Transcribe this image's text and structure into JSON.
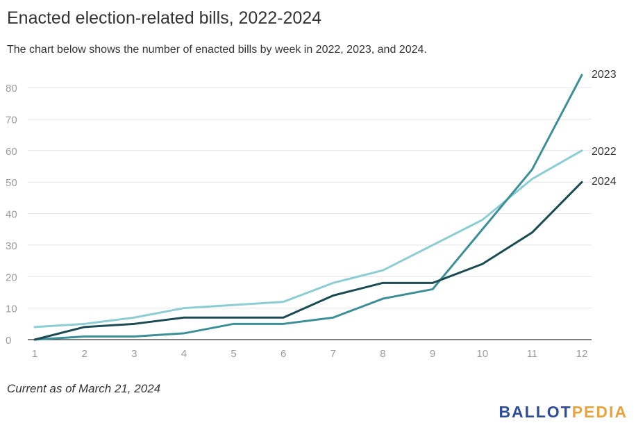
{
  "header": {
    "title": "Enacted election-related bills, 2022-2024",
    "subtitle": "The chart below shows the number of enacted bills by week in 2022, 2023, and 2024."
  },
  "footer": {
    "note": "Current as of March 21, 2024",
    "logo_part1": "BALLOT",
    "logo_part2": "PEDIA",
    "logo_colors": {
      "part1": "#2d4c9c",
      "part2": "#e8a33d"
    }
  },
  "chart_data": {
    "type": "line",
    "x": [
      1,
      2,
      3,
      4,
      5,
      6,
      7,
      8,
      9,
      10,
      11,
      12
    ],
    "ylim": [
      0,
      84
    ],
    "yticks": [
      0,
      10,
      20,
      30,
      40,
      50,
      60,
      70,
      80
    ],
    "grid": true,
    "legend": "inline-end-labels",
    "series": [
      {
        "name": "2022",
        "color": "#8ccdd3",
        "values": [
          4,
          5,
          7,
          10,
          11,
          12,
          18,
          22,
          30,
          38,
          51,
          60
        ]
      },
      {
        "name": "2023",
        "color": "#3c8f97",
        "values": [
          0,
          1,
          1,
          2,
          5,
          5,
          7,
          13,
          16,
          35,
          54,
          84
        ]
      },
      {
        "name": "2024",
        "color": "#1a4a52",
        "values": [
          0,
          4,
          5,
          7,
          7,
          7,
          14,
          18,
          18,
          24,
          34,
          50
        ]
      }
    ]
  }
}
